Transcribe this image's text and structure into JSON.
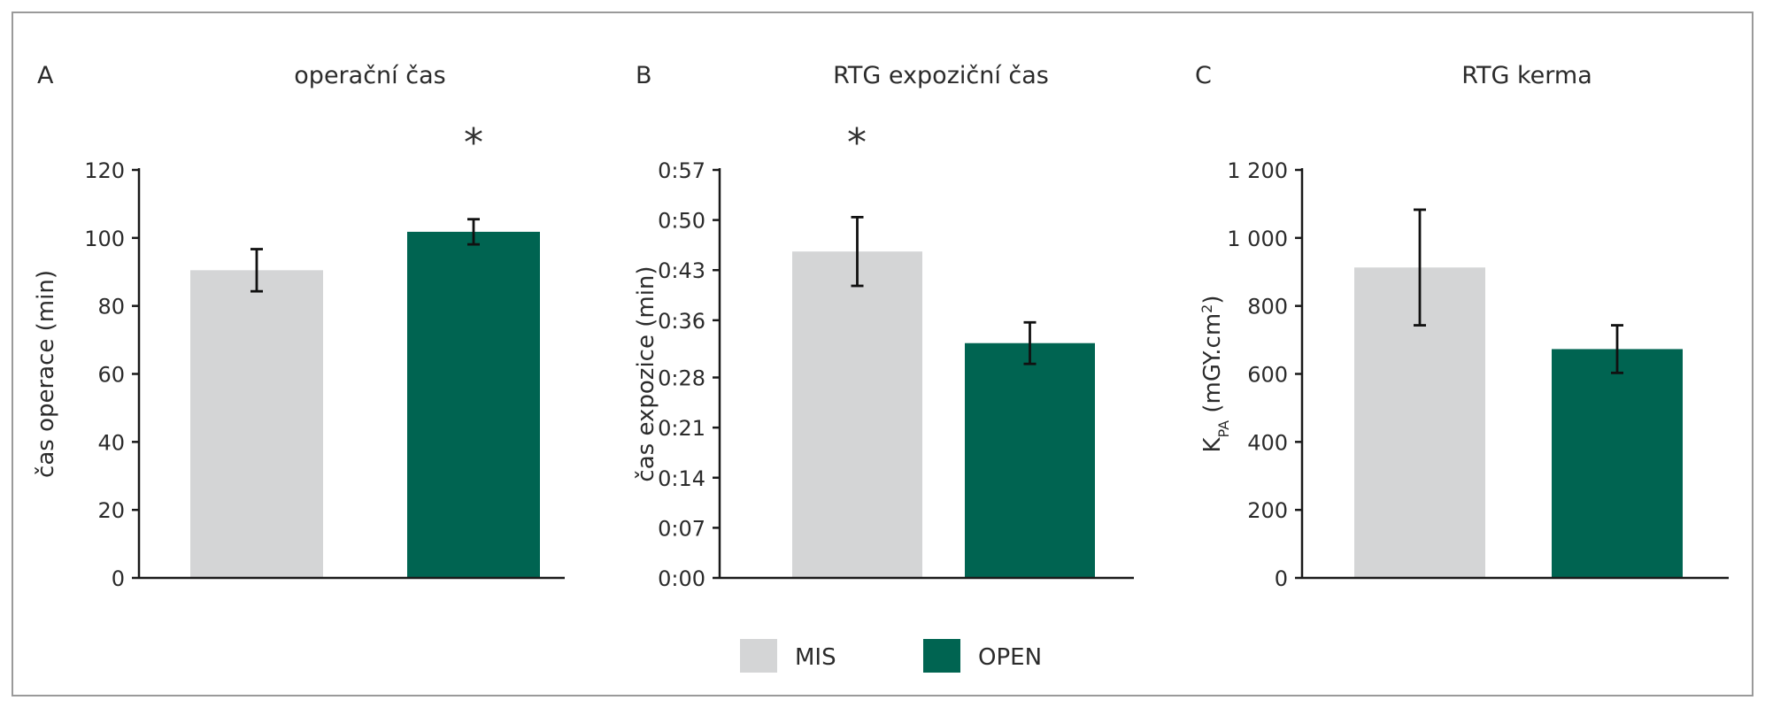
{
  "colors": {
    "MIS": "#d4d5d6",
    "OPEN": "#006451",
    "frame": "#9a9a9a",
    "axis": "#1a1a1a"
  },
  "legend": {
    "items": [
      {
        "key": "MIS",
        "label": "MIS"
      },
      {
        "key": "OPEN",
        "label": "OPEN"
      }
    ]
  },
  "chart_data": [
    {
      "type": "bar",
      "panel": "A",
      "title": "operační čas",
      "ylabel": "čas operace (min)",
      "ylim": [
        0,
        120
      ],
      "ticks": [
        0,
        20,
        40,
        60,
        80,
        100,
        120
      ],
      "tick_labels": [
        "0",
        "20",
        "40",
        "60",
        "80",
        "100",
        "120"
      ],
      "categories": [
        "MIS",
        "OPEN"
      ],
      "values": [
        90.5,
        101.8
      ],
      "error": [
        6.2,
        3.7
      ],
      "significance": "OPEN",
      "significance_marker": "*"
    },
    {
      "type": "bar",
      "panel": "B",
      "title": "RTG expoziční čas",
      "ylabel": "čas expozice (min)",
      "ylim": [
        0,
        57
      ],
      "ticks": [
        0,
        7,
        14,
        21,
        28,
        36,
        43,
        50,
        57
      ],
      "tick_labels": [
        "0:00",
        "0:07",
        "0:14",
        "0:21",
        "0:28",
        "0:36",
        "0:43",
        "0:50",
        "0:57"
      ],
      "categories": [
        "MIS",
        "OPEN"
      ],
      "values": [
        45.6,
        32.8
      ],
      "error": [
        4.8,
        2.9
      ],
      "significance": "MIS",
      "significance_marker": "*"
    },
    {
      "type": "bar",
      "panel": "C",
      "title": "RTG kerma",
      "ylabel": "K",
      "ylabel_sub": "PA",
      "ylabel_rest": " (mGY.cm",
      "ylabel_sup": "2",
      "ylabel_end": ")",
      "ylim": [
        0,
        1200
      ],
      "ticks": [
        0,
        200,
        400,
        600,
        800,
        1000,
        1200
      ],
      "tick_labels": [
        "0",
        "200",
        "400",
        "600",
        "800",
        "1 000",
        "1 200"
      ],
      "categories": [
        "MIS",
        "OPEN"
      ],
      "values": [
        913,
        673
      ],
      "error": [
        170,
        70
      ],
      "significance": null
    }
  ]
}
